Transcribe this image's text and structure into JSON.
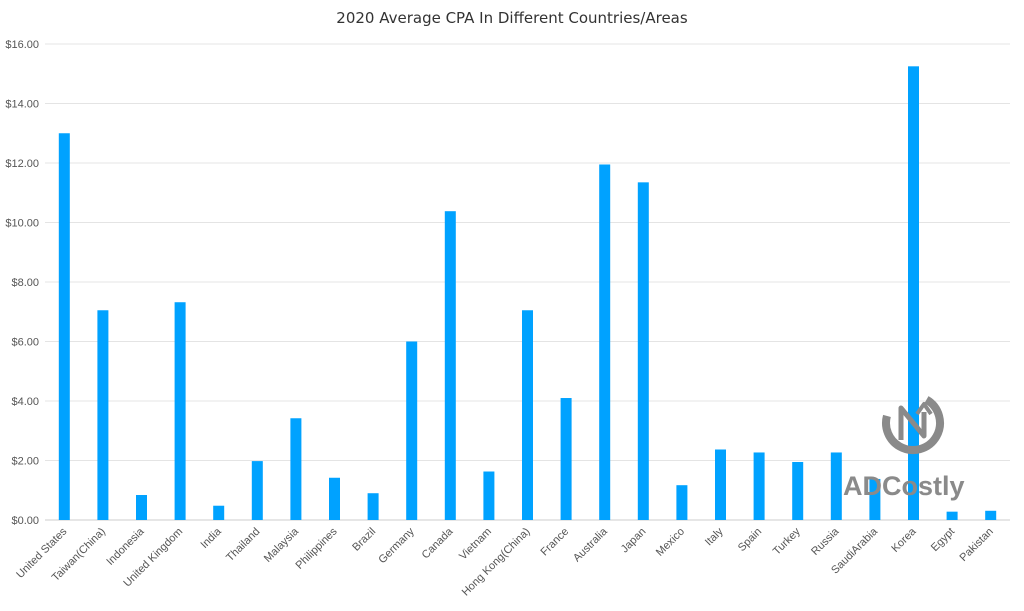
{
  "chart_data": {
    "type": "bar",
    "title": "2020 Average CPA In Different Countries/Areas",
    "xlabel": "",
    "ylabel": "",
    "ylim": [
      0,
      16
    ],
    "yticks": [
      "$0.00",
      "$2.00",
      "$4.00",
      "$6.00",
      "$8.00",
      "$10.00",
      "$12.00",
      "$14.00",
      "$16.00"
    ],
    "grid": true,
    "bar_color": "#00a2ff",
    "categories": [
      "United States",
      "Taiwan(China)",
      "Indonesia",
      "United Kingdom",
      "India",
      "Thailand",
      "Malaysia",
      "Philippines",
      "Brazil",
      "Germany",
      "Canada",
      "Vietnam",
      "Hong Kong(China)",
      "France",
      "Australia",
      "Japan",
      "Mexico",
      "Italy",
      "Spain",
      "Turkey",
      "Russia",
      "SaudiArabia",
      "Korea",
      "Egypt",
      "Pakistan"
    ],
    "values": [
      13.0,
      7.05,
      0.84,
      7.32,
      0.48,
      1.98,
      3.42,
      1.42,
      0.9,
      6.0,
      10.38,
      1.63,
      7.05,
      4.1,
      11.95,
      11.35,
      1.17,
      2.37,
      2.27,
      1.95,
      2.27,
      1.38,
      15.25,
      0.28,
      0.31
    ]
  },
  "watermark": {
    "text": "ADCostly",
    "icon": "adcostly-logo-icon",
    "color": "#8a8a8a"
  }
}
